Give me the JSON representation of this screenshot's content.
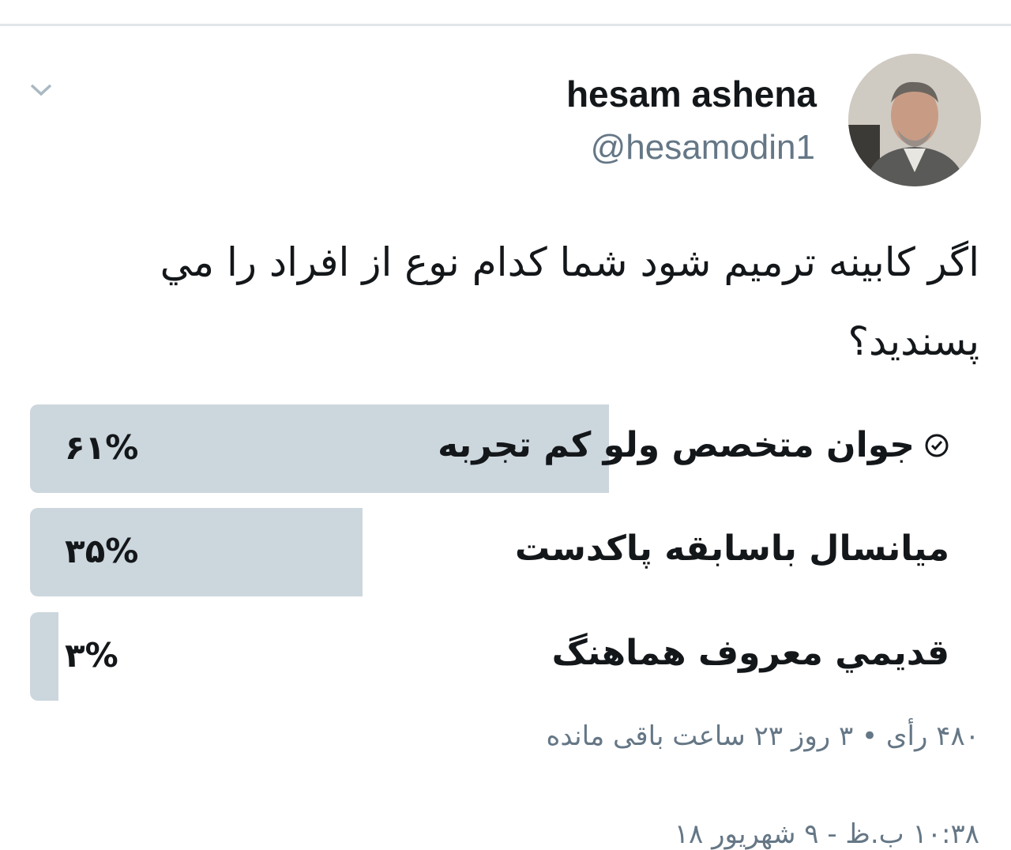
{
  "user": {
    "name": "hesam ashena",
    "handle": "@hesamodin1"
  },
  "tweet": {
    "text": "اگر کابینه ترمیم شود شما کدام نوع از افراد را مي پسنديد؟"
  },
  "poll": {
    "options": [
      {
        "label": "جوان متخصص ولو کم تجربه",
        "percent_label": "۶۱%",
        "percent": 61,
        "selected": true
      },
      {
        "label": "ميانسال باسابقه پاکدست",
        "percent_label": "۳۵%",
        "percent": 35,
        "selected": false
      },
      {
        "label": "قديمي معروف هماهنگ",
        "percent_label": "۳%",
        "percent": 3,
        "selected": false
      }
    ],
    "summary": "۴۸۰ رأی • ۳ روز ۲۳ ساعت باقی مانده"
  },
  "timestamp": "۱۰:۳۸ ب.ظ - ۹ شهریور ۱۸",
  "colors": {
    "bar": "#ccd6dd",
    "secondary_text": "#657786",
    "primary_text": "#14171a"
  }
}
